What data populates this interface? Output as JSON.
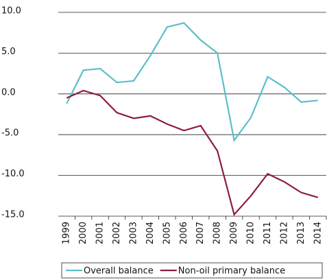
{
  "chart_data": {
    "type": "line",
    "categories": [
      "1999",
      "2000",
      "2001",
      "2002",
      "2003",
      "2004",
      "2005",
      "2006",
      "2007",
      "2008",
      "2009",
      "2010",
      "2011",
      "2012",
      "2013",
      "2014"
    ],
    "series": [
      {
        "name": "Overall balance",
        "color": "#5bbfc9",
        "values": [
          -1.2,
          2.9,
          3.1,
          1.4,
          1.6,
          4.7,
          8.2,
          8.7,
          6.6,
          5.0,
          -5.7,
          -2.9,
          2.1,
          0.8,
          -1.0,
          -0.8
        ]
      },
      {
        "name": "Non-oil primary balance",
        "color": "#8c1c3c",
        "values": [
          -0.5,
          0.4,
          -0.2,
          -2.3,
          -3.0,
          -2.7,
          -3.7,
          -4.5,
          -3.9,
          -7.0,
          -14.8,
          -12.5,
          -9.8,
          -10.8,
          -12.1,
          -12.7
        ]
      }
    ],
    "ylim": [
      -15,
      10
    ],
    "yticks": [
      {
        "value": 10,
        "label": "10.0"
      },
      {
        "value": 5,
        "label": "5.0"
      },
      {
        "value": 0,
        "label": "0.0"
      },
      {
        "value": -5,
        "label": "-5.0"
      },
      {
        "value": -10,
        "label": "-10.0"
      },
      {
        "value": -15,
        "label": "-15.0"
      }
    ],
    "grid": true,
    "legend": "bottom"
  }
}
